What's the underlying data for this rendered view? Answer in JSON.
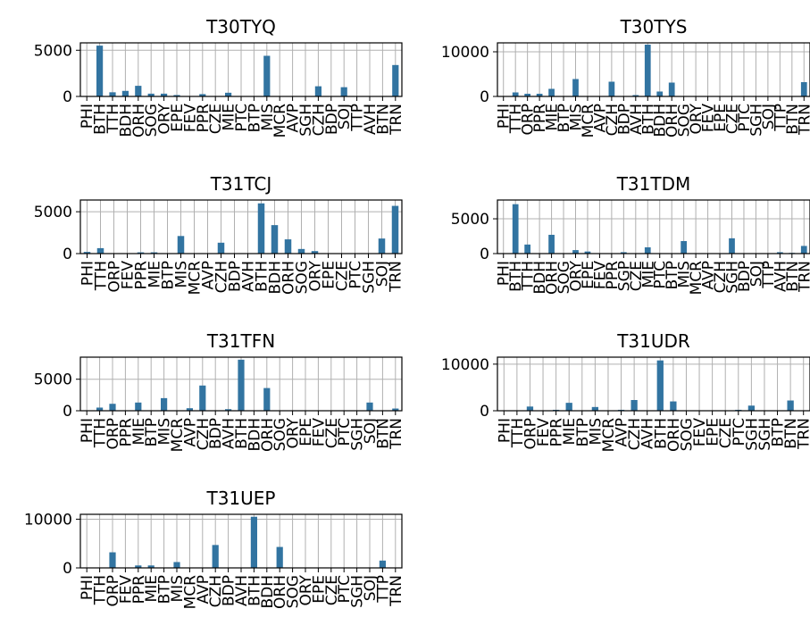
{
  "chart_data": [
    {
      "type": "bar",
      "title": "T30TYQ",
      "ylim": [
        0,
        5800
      ],
      "yticks": [
        0,
        5000
      ],
      "categories": [
        "PHI",
        "BTH",
        "TTH",
        "BDH",
        "ORH",
        "SOG",
        "ORY",
        "EPE",
        "FEV",
        "PPR",
        "CZE",
        "MIE",
        "PTC",
        "BTP",
        "MIS",
        "MCR",
        "AVP",
        "SGH",
        "CZH",
        "BDP",
        "SOJ",
        "TTP",
        "AVH",
        "BTN",
        "TRN"
      ],
      "values": [
        0,
        5500,
        450,
        600,
        1150,
        300,
        300,
        150,
        0,
        250,
        0,
        400,
        0,
        0,
        4400,
        0,
        0,
        0,
        1100,
        0,
        1000,
        0,
        0,
        0,
        3400
      ],
      "grid": true
    },
    {
      "type": "bar",
      "title": "T30TYS",
      "ylim": [
        0,
        12000
      ],
      "yticks": [
        0,
        10000
      ],
      "categories": [
        "PHI",
        "TTH",
        "ORP",
        "PPR",
        "MIE",
        "BTP",
        "MIS",
        "MCR",
        "AVP",
        "CZH",
        "BDP",
        "AVH",
        "BTH",
        "BDH",
        "ORH",
        "SOG",
        "ORY",
        "FEV",
        "EPE",
        "CZE",
        "PTC",
        "SGH",
        "SOJ",
        "TTP",
        "BTN",
        "TRN"
      ],
      "values": [
        0,
        900,
        600,
        600,
        1700,
        0,
        3900,
        0,
        0,
        3300,
        0,
        300,
        11600,
        1100,
        3100,
        0,
        0,
        0,
        0,
        0,
        0,
        0,
        0,
        0,
        0,
        3200
      ],
      "grid": true
    },
    {
      "type": "bar",
      "title": "T31TCJ",
      "ylim": [
        0,
        6400
      ],
      "yticks": [
        0,
        5000
      ],
      "categories": [
        "PHI",
        "TTH",
        "ORP",
        "FEV",
        "PPR",
        "MIE",
        "BTP",
        "MIS",
        "MCR",
        "AVP",
        "CZH",
        "BDP",
        "AVH",
        "BTH",
        "BDH",
        "ORH",
        "SOG",
        "ORY",
        "EPE",
        "CZE",
        "PTC",
        "SGH",
        "SOJ",
        "TRN"
      ],
      "values": [
        200,
        650,
        0,
        0,
        150,
        150,
        0,
        2100,
        0,
        0,
        1300,
        0,
        0,
        6000,
        3400,
        1700,
        550,
        300,
        0,
        0,
        0,
        0,
        1800,
        5700
      ],
      "grid": true
    },
    {
      "type": "bar",
      "title": "T31TDM",
      "ylim": [
        0,
        7700
      ],
      "yticks": [
        0,
        5000
      ],
      "categories": [
        "PHI",
        "BTH",
        "TTH",
        "BDH",
        "ORH",
        "SOG",
        "ORY",
        "EPE",
        "FEV",
        "PPR",
        "SGP",
        "CZE",
        "MIE",
        "PTC",
        "BTP",
        "MIS",
        "MCR",
        "AVP",
        "CZH",
        "SGH",
        "BDP",
        "SOJ",
        "TTP",
        "AVH",
        "BTN",
        "TRN"
      ],
      "values": [
        0,
        7100,
        1300,
        0,
        2700,
        0,
        500,
        300,
        0,
        0,
        200,
        0,
        900,
        0,
        0,
        1800,
        0,
        0,
        0,
        2200,
        0,
        0,
        0,
        200,
        100,
        1100
      ],
      "grid": true
    },
    {
      "type": "bar",
      "title": "T31TFN",
      "ylim": [
        0,
        8500
      ],
      "yticks": [
        0,
        5000
      ],
      "categories": [
        "PHI",
        "TTH",
        "ORP",
        "PPR",
        "MIE",
        "BTP",
        "MIS",
        "MCR",
        "AVP",
        "CZH",
        "BDP",
        "AVH",
        "BTH",
        "BDH",
        "ORH",
        "SOG",
        "ORY",
        "EPE",
        "FEV",
        "CZE",
        "PTC",
        "SGH",
        "SOJ",
        "BTN",
        "TRN"
      ],
      "values": [
        0,
        500,
        1100,
        0,
        1300,
        0,
        2000,
        0,
        400,
        4000,
        0,
        250,
        8100,
        0,
        3600,
        0,
        0,
        0,
        0,
        0,
        0,
        0,
        1300,
        0,
        350
      ],
      "grid": true
    },
    {
      "type": "bar",
      "title": "T31UDR",
      "ylim": [
        0,
        11500
      ],
      "yticks": [
        0,
        10000
      ],
      "categories": [
        "PHI",
        "TTH",
        "ORP",
        "FEV",
        "PPR",
        "MIE",
        "BTP",
        "MIS",
        "MCR",
        "AVP",
        "CZH",
        "AVH",
        "BTH",
        "ORH",
        "SOG",
        "FEV",
        "EPE",
        "CZE",
        "PTC",
        "SGH",
        "SGH",
        "BTP",
        "BTN",
        "TRN"
      ],
      "values": [
        0,
        0,
        900,
        0,
        200,
        1700,
        0,
        800,
        0,
        200,
        2300,
        0,
        10800,
        2000,
        0,
        0,
        0,
        0,
        200,
        1100,
        0,
        0,
        2200,
        0
      ],
      "grid": true
    },
    {
      "type": "bar",
      "title": "T31UEP",
      "ylim": [
        0,
        11000
      ],
      "yticks": [
        0,
        10000
      ],
      "categories": [
        "PHI",
        "TTH",
        "ORP",
        "FEV",
        "PPR",
        "MIE",
        "BTP",
        "MIS",
        "MCR",
        "AVP",
        "CZH",
        "BDP",
        "AVH",
        "BTH",
        "BDH",
        "ORH",
        "SOG",
        "ORY",
        "EPE",
        "CZE",
        "PTC",
        "SGH",
        "SOJ",
        "TTP",
        "TRN"
      ],
      "values": [
        0,
        0,
        3200,
        0,
        500,
        500,
        0,
        1200,
        0,
        0,
        4700,
        0,
        0,
        10500,
        0,
        4300,
        0,
        0,
        0,
        0,
        0,
        0,
        0,
        1500,
        0
      ],
      "grid": true
    }
  ],
  "colors": {
    "bar": "#3274a1",
    "grid": "#b0b0b0",
    "axis": "#000000"
  }
}
